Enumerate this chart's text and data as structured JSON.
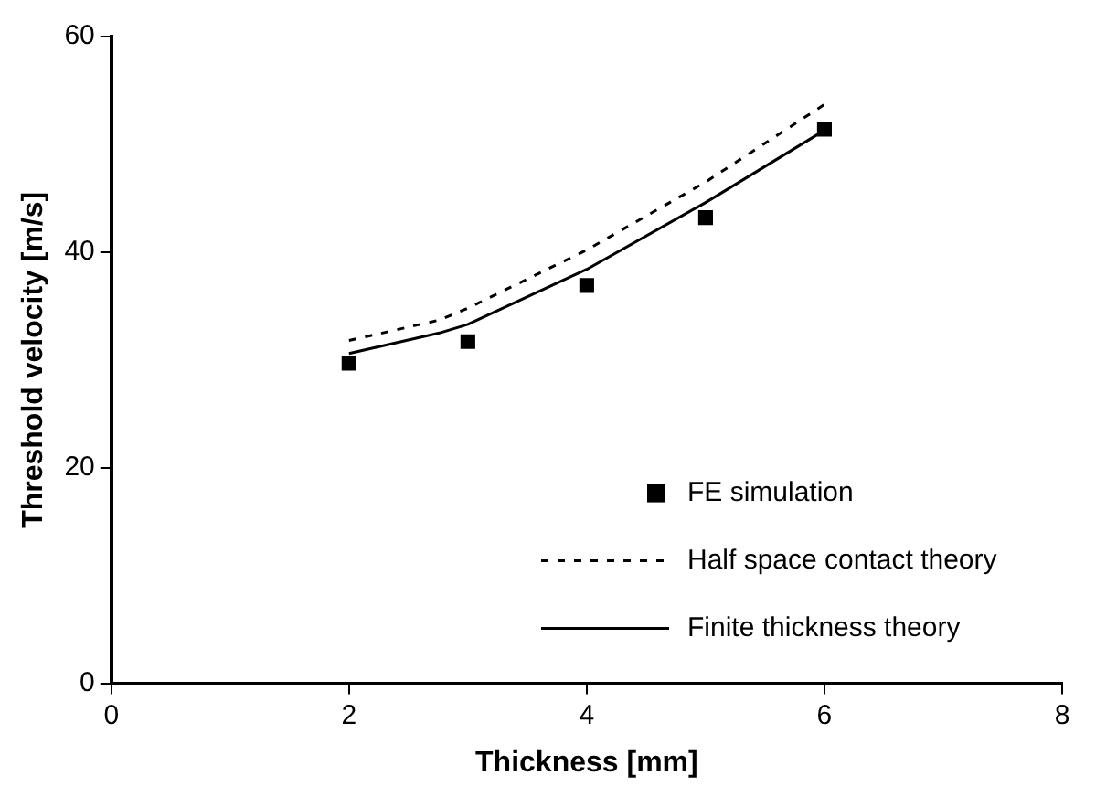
{
  "chart_data": {
    "type": "scatter",
    "xlabel": "Thickness [mm]",
    "ylabel": "Threshold velocity [m/s]",
    "xlim": [
      0,
      8
    ],
    "xticks": [
      0,
      2,
      4,
      6,
      8
    ],
    "ylim": [
      0,
      60
    ],
    "yticks": [
      0,
      20,
      40,
      60
    ],
    "grid": false,
    "legend": "bottom right",
    "series": [
      {
        "name": "FE simulation",
        "marker": "square",
        "color": "#000000",
        "x": [
          2,
          3,
          4,
          5,
          6
        ],
        "values": [
          29.7,
          31.7,
          36.9,
          43.2,
          51.4
        ]
      },
      {
        "name": "Half space contact theory",
        "type": "line",
        "marker": "none",
        "line_style": "dotted",
        "color": "#000000",
        "x": [
          2,
          2.76,
          3,
          4,
          5,
          6
        ],
        "values": [
          31.8,
          33.7,
          34.8,
          40.2,
          46.5,
          53.7
        ]
      },
      {
        "name": "Finite thickness theory",
        "type": "line",
        "marker": "none",
        "line_style": "solid",
        "color": "#000000",
        "x": [
          2,
          2.76,
          3,
          4,
          5,
          6
        ],
        "values": [
          30.6,
          32.5,
          33.3,
          38.4,
          44.6,
          51.3
        ]
      }
    ]
  }
}
